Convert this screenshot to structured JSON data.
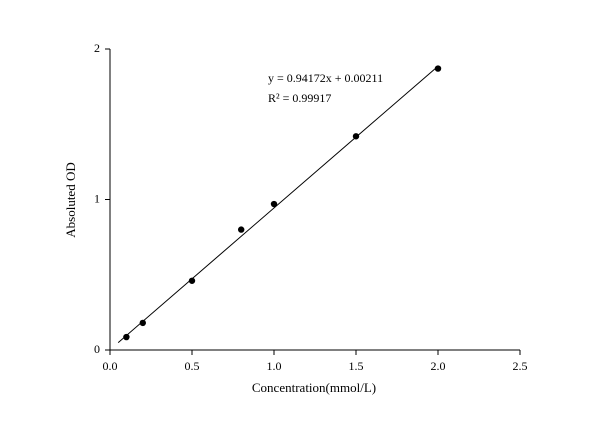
{
  "chart_data": {
    "type": "scatter",
    "x_label": "Concentration(mmol/L)",
    "y_label": "Absoluted OD",
    "x": [
      0.1,
      0.2,
      0.5,
      0.8,
      1.0,
      1.5,
      2.0
    ],
    "series": [
      {
        "color": "#000000",
        "values": [
          0.086,
          0.18,
          0.46,
          0.8,
          0.97,
          1.42,
          1.87
        ]
      }
    ],
    "fit": {
      "slope": 0.94172,
      "intercept": 0.00211,
      "color": "#000000"
    },
    "annotations": [
      "y = 0.94172x + 0.00211",
      "R² = 0.99917"
    ],
    "xlim": [
      0,
      2.5
    ],
    "xticks": [
      {
        "value": 0,
        "label": "0.0"
      },
      {
        "value": 0.5,
        "label": "0.5"
      },
      {
        "value": 1,
        "label": "1.0"
      },
      {
        "value": 1.5,
        "label": "1.5"
      },
      {
        "value": 2,
        "label": "2.0"
      },
      {
        "value": 2.5,
        "label": "2.5"
      }
    ],
    "ylim": [
      0,
      2
    ],
    "yticks": [
      0,
      1,
      2
    ],
    "grid": false
  }
}
